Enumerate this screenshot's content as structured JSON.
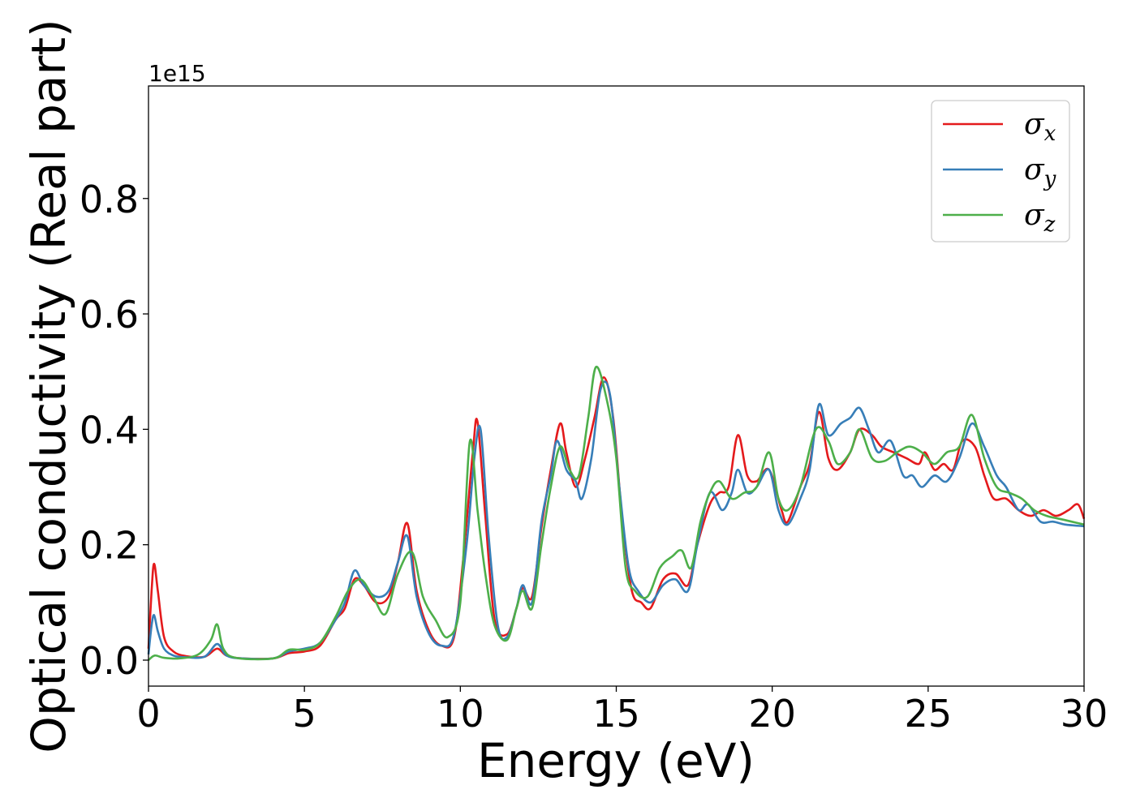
{
  "chart_data": {
    "type": "line",
    "xlabel": "Energy (eV)",
    "ylabel": "Optical conductivity (Real part)",
    "y_offset_label": "1e15",
    "xlim": [
      0,
      30
    ],
    "ylim": [
      -0.045,
      0.995
    ],
    "xticks": [
      0,
      5,
      10,
      15,
      20,
      25,
      30
    ],
    "xtick_labels": [
      "0",
      "5",
      "10",
      "15",
      "20",
      "25",
      "30"
    ],
    "yticks": [
      0.0,
      0.2,
      0.4,
      0.6,
      0.8
    ],
    "ytick_labels": [
      "0.0",
      "0.2",
      "0.4",
      "0.6",
      "0.8"
    ],
    "grid": false,
    "legend_position": "top-right",
    "series": [
      {
        "name": "σx",
        "symbol": "σ",
        "subscript": "x",
        "color": "#e41a1c",
        "points": [
          [
            0,
            0.02
          ],
          [
            0.1,
            0.12
          ],
          [
            0.18,
            0.167
          ],
          [
            0.3,
            0.12
          ],
          [
            0.5,
            0.04
          ],
          [
            0.8,
            0.015
          ],
          [
            1.2,
            0.007
          ],
          [
            1.8,
            0.006
          ],
          [
            2.2,
            0.02
          ],
          [
            2.5,
            0.008
          ],
          [
            3,
            0.003
          ],
          [
            4,
            0.003
          ],
          [
            4.5,
            0.012
          ],
          [
            5,
            0.015
          ],
          [
            5.5,
            0.025
          ],
          [
            6,
            0.07
          ],
          [
            6.3,
            0.09
          ],
          [
            6.6,
            0.14
          ],
          [
            6.9,
            0.13
          ],
          [
            7.3,
            0.1
          ],
          [
            7.7,
            0.11
          ],
          [
            8,
            0.17
          ],
          [
            8.3,
            0.237
          ],
          [
            8.6,
            0.12
          ],
          [
            9,
            0.05
          ],
          [
            9.4,
            0.025
          ],
          [
            9.8,
            0.04
          ],
          [
            10.1,
            0.18
          ],
          [
            10.4,
            0.36
          ],
          [
            10.55,
            0.413
          ],
          [
            10.8,
            0.25
          ],
          [
            11.1,
            0.07
          ],
          [
            11.5,
            0.045
          ],
          [
            11.8,
            0.09
          ],
          [
            12,
            0.125
          ],
          [
            12.3,
            0.11
          ],
          [
            12.6,
            0.23
          ],
          [
            12.9,
            0.33
          ],
          [
            13.2,
            0.41
          ],
          [
            13.4,
            0.36
          ],
          [
            13.7,
            0.3
          ],
          [
            14,
            0.35
          ],
          [
            14.3,
            0.42
          ],
          [
            14.6,
            0.49
          ],
          [
            14.9,
            0.42
          ],
          [
            15.2,
            0.24
          ],
          [
            15.5,
            0.12
          ],
          [
            15.8,
            0.1
          ],
          [
            16.1,
            0.09
          ],
          [
            16.5,
            0.14
          ],
          [
            16.9,
            0.15
          ],
          [
            17.3,
            0.13
          ],
          [
            17.6,
            0.2
          ],
          [
            18,
            0.27
          ],
          [
            18.3,
            0.29
          ],
          [
            18.6,
            0.3
          ],
          [
            18.9,
            0.39
          ],
          [
            19.2,
            0.32
          ],
          [
            19.5,
            0.31
          ],
          [
            19.9,
            0.33
          ],
          [
            20.3,
            0.26
          ],
          [
            20.5,
            0.24
          ],
          [
            20.9,
            0.3
          ],
          [
            21.2,
            0.34
          ],
          [
            21.5,
            0.43
          ],
          [
            21.8,
            0.35
          ],
          [
            22.1,
            0.33
          ],
          [
            22.5,
            0.36
          ],
          [
            22.8,
            0.4
          ],
          [
            23.2,
            0.39
          ],
          [
            23.5,
            0.37
          ],
          [
            23.9,
            0.36
          ],
          [
            24.3,
            0.35
          ],
          [
            24.7,
            0.34
          ],
          [
            24.9,
            0.36
          ],
          [
            25.2,
            0.33
          ],
          [
            25.5,
            0.34
          ],
          [
            25.8,
            0.33
          ],
          [
            26.1,
            0.38
          ],
          [
            26.5,
            0.37
          ],
          [
            26.8,
            0.32
          ],
          [
            27.1,
            0.28
          ],
          [
            27.5,
            0.28
          ],
          [
            27.9,
            0.26
          ],
          [
            28.3,
            0.25
          ],
          [
            28.7,
            0.26
          ],
          [
            29.1,
            0.25
          ],
          [
            29.5,
            0.26
          ],
          [
            29.8,
            0.27
          ],
          [
            30,
            0.245
          ]
        ]
      },
      {
        "name": "σy",
        "symbol": "σ",
        "subscript": "y",
        "color": "#377eb8",
        "points": [
          [
            0,
            0.01
          ],
          [
            0.1,
            0.06
          ],
          [
            0.18,
            0.078
          ],
          [
            0.3,
            0.05
          ],
          [
            0.5,
            0.02
          ],
          [
            0.8,
            0.008
          ],
          [
            1.2,
            0.005
          ],
          [
            1.8,
            0.006
          ],
          [
            2.2,
            0.028
          ],
          [
            2.5,
            0.008
          ],
          [
            3,
            0.003
          ],
          [
            4,
            0.003
          ],
          [
            4.5,
            0.015
          ],
          [
            5,
            0.02
          ],
          [
            5.5,
            0.03
          ],
          [
            6,
            0.07
          ],
          [
            6.3,
            0.1
          ],
          [
            6.6,
            0.155
          ],
          [
            6.9,
            0.13
          ],
          [
            7.3,
            0.11
          ],
          [
            7.7,
            0.12
          ],
          [
            8,
            0.17
          ],
          [
            8.3,
            0.215
          ],
          [
            8.6,
            0.11
          ],
          [
            9,
            0.045
          ],
          [
            9.4,
            0.025
          ],
          [
            9.8,
            0.045
          ],
          [
            10.2,
            0.2
          ],
          [
            10.45,
            0.35
          ],
          [
            10.65,
            0.4
          ],
          [
            10.9,
            0.22
          ],
          [
            11.2,
            0.06
          ],
          [
            11.5,
            0.04
          ],
          [
            11.8,
            0.09
          ],
          [
            12,
            0.13
          ],
          [
            12.3,
            0.1
          ],
          [
            12.6,
            0.24
          ],
          [
            12.9,
            0.32
          ],
          [
            13.1,
            0.38
          ],
          [
            13.4,
            0.33
          ],
          [
            13.7,
            0.31
          ],
          [
            13.9,
            0.28
          ],
          [
            14.2,
            0.35
          ],
          [
            14.5,
            0.47
          ],
          [
            14.8,
            0.46
          ],
          [
            15.1,
            0.3
          ],
          [
            15.4,
            0.16
          ],
          [
            15.7,
            0.12
          ],
          [
            16.1,
            0.1
          ],
          [
            16.5,
            0.13
          ],
          [
            16.9,
            0.14
          ],
          [
            17.3,
            0.12
          ],
          [
            17.6,
            0.2
          ],
          [
            18,
            0.29
          ],
          [
            18.4,
            0.26
          ],
          [
            18.7,
            0.29
          ],
          [
            18.9,
            0.33
          ],
          [
            19.2,
            0.29
          ],
          [
            19.5,
            0.3
          ],
          [
            19.9,
            0.33
          ],
          [
            20.2,
            0.26
          ],
          [
            20.5,
            0.235
          ],
          [
            20.9,
            0.28
          ],
          [
            21.2,
            0.33
          ],
          [
            21.5,
            0.443
          ],
          [
            21.8,
            0.39
          ],
          [
            22.2,
            0.41
          ],
          [
            22.5,
            0.42
          ],
          [
            22.8,
            0.437
          ],
          [
            23.1,
            0.4
          ],
          [
            23.4,
            0.36
          ],
          [
            23.8,
            0.38
          ],
          [
            24.2,
            0.32
          ],
          [
            24.5,
            0.32
          ],
          [
            24.8,
            0.3
          ],
          [
            25.2,
            0.32
          ],
          [
            25.6,
            0.31
          ],
          [
            26,
            0.35
          ],
          [
            26.4,
            0.41
          ],
          [
            26.8,
            0.37
          ],
          [
            27.2,
            0.32
          ],
          [
            27.5,
            0.3
          ],
          [
            27.9,
            0.26
          ],
          [
            28.2,
            0.27
          ],
          [
            28.6,
            0.24
          ],
          [
            29,
            0.24
          ],
          [
            29.4,
            0.235
          ],
          [
            30,
            0.232
          ]
        ]
      },
      {
        "name": "σz",
        "symbol": "σ",
        "subscript": "z",
        "color": "#4daf4a",
        "points": [
          [
            0,
            0.0
          ],
          [
            0.2,
            0.008
          ],
          [
            0.5,
            0.004
          ],
          [
            1,
            0.003
          ],
          [
            1.6,
            0.01
          ],
          [
            2,
            0.035
          ],
          [
            2.2,
            0.062
          ],
          [
            2.4,
            0.02
          ],
          [
            2.8,
            0.004
          ],
          [
            4,
            0.003
          ],
          [
            4.5,
            0.018
          ],
          [
            5,
            0.018
          ],
          [
            5.5,
            0.03
          ],
          [
            6,
            0.075
          ],
          [
            6.4,
            0.12
          ],
          [
            6.8,
            0.14
          ],
          [
            7.2,
            0.11
          ],
          [
            7.6,
            0.08
          ],
          [
            8,
            0.15
          ],
          [
            8.45,
            0.187
          ],
          [
            8.8,
            0.11
          ],
          [
            9.2,
            0.07
          ],
          [
            9.6,
            0.04
          ],
          [
            10,
            0.1
          ],
          [
            10.3,
            0.378
          ],
          [
            10.55,
            0.26
          ],
          [
            10.8,
            0.15
          ],
          [
            11.1,
            0.06
          ],
          [
            11.5,
            0.035
          ],
          [
            11.8,
            0.09
          ],
          [
            12,
            0.12
          ],
          [
            12.3,
            0.09
          ],
          [
            12.6,
            0.2
          ],
          [
            12.9,
            0.3
          ],
          [
            13.2,
            0.37
          ],
          [
            13.5,
            0.33
          ],
          [
            13.8,
            0.32
          ],
          [
            14.1,
            0.42
          ],
          [
            14.35,
            0.508
          ],
          [
            14.7,
            0.45
          ],
          [
            15,
            0.35
          ],
          [
            15.3,
            0.16
          ],
          [
            15.6,
            0.12
          ],
          [
            16,
            0.11
          ],
          [
            16.4,
            0.16
          ],
          [
            16.8,
            0.18
          ],
          [
            17.1,
            0.19
          ],
          [
            17.4,
            0.16
          ],
          [
            17.7,
            0.24
          ],
          [
            18,
            0.29
          ],
          [
            18.3,
            0.31
          ],
          [
            18.7,
            0.28
          ],
          [
            19.1,
            0.29
          ],
          [
            19.5,
            0.3
          ],
          [
            19.9,
            0.36
          ],
          [
            20.2,
            0.28
          ],
          [
            20.5,
            0.26
          ],
          [
            20.9,
            0.3
          ],
          [
            21.4,
            0.4
          ],
          [
            21.8,
            0.38
          ],
          [
            22.1,
            0.34
          ],
          [
            22.5,
            0.36
          ],
          [
            22.8,
            0.4
          ],
          [
            23.2,
            0.35
          ],
          [
            23.6,
            0.345
          ],
          [
            24,
            0.36
          ],
          [
            24.4,
            0.37
          ],
          [
            24.8,
            0.36
          ],
          [
            25.2,
            0.34
          ],
          [
            25.6,
            0.36
          ],
          [
            26,
            0.37
          ],
          [
            26.4,
            0.425
          ],
          [
            26.8,
            0.35
          ],
          [
            27.2,
            0.3
          ],
          [
            27.6,
            0.29
          ],
          [
            28,
            0.28
          ],
          [
            28.4,
            0.26
          ],
          [
            28.8,
            0.25
          ],
          [
            29.2,
            0.245
          ],
          [
            29.6,
            0.24
          ],
          [
            30,
            0.235
          ]
        ]
      }
    ]
  }
}
